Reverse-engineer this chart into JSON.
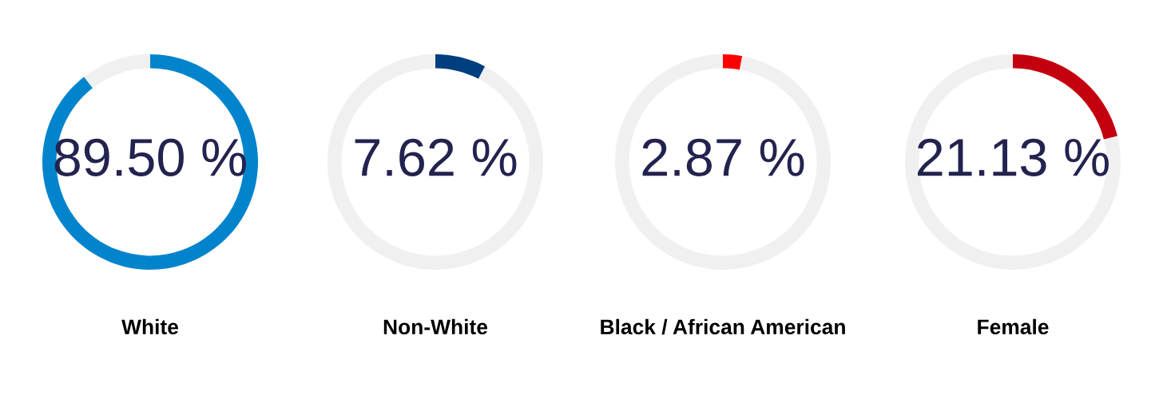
{
  "chart_data": [
    {
      "type": "donut",
      "title": "White",
      "categories": [
        null,
        null
      ],
      "values": [
        89.5,
        10.5
      ],
      "colors": [
        "#0284cd",
        "#f0f0f0"
      ],
      "value_labels": [
        "89.50 %",
        null
      ]
    },
    {
      "type": "donut",
      "title": "Non-White",
      "categories": [
        null,
        null
      ],
      "values": [
        7.62,
        92.38
      ],
      "colors": [
        "#003f7f",
        "#f0f0f0"
      ],
      "value_labels": [
        "7.62 %",
        null
      ]
    },
    {
      "type": "donut",
      "title": "Black / African American",
      "categories": [
        null,
        null
      ],
      "values": [
        2.87,
        97.13
      ],
      "colors": [
        "#ff0000",
        "#f0f0f0"
      ],
      "value_labels": [
        "2.87 %",
        null
      ]
    },
    {
      "type": "donut",
      "title": "Female",
      "categories": [
        null,
        null
      ],
      "values": [
        21.13,
        78.87
      ],
      "colors": [
        "#c4000e",
        "#f0f0f0"
      ],
      "value_labels": [
        "21.13 %",
        null
      ]
    }
  ]
}
